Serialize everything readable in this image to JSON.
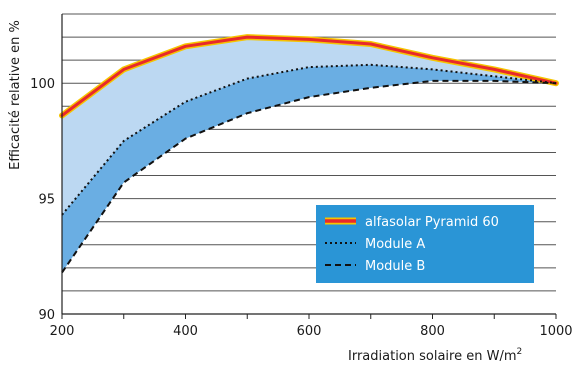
{
  "chart_data": {
    "type": "line",
    "title": "",
    "xlabel": "Irradiation solaire en W/m",
    "xlabel_superscript": "2",
    "ylabel": "Efficacité relative en %",
    "xlim": [
      200,
      1000
    ],
    "ylim": [
      90,
      103
    ],
    "x_ticks": [
      200,
      300,
      400,
      500,
      600,
      700,
      800,
      900,
      1000
    ],
    "x_tick_labels": [
      "200",
      "400",
      "600",
      "800",
      "1000"
    ],
    "x_tick_label_values": [
      200,
      400,
      600,
      800,
      1000
    ],
    "y_grid": [
      91,
      92,
      93,
      94,
      95,
      96,
      97,
      98,
      99,
      100,
      101,
      102,
      103
    ],
    "y_tick_labels": [
      "90",
      "95",
      "100"
    ],
    "y_tick_label_values": [
      90,
      95,
      100
    ],
    "grid": "horizontal",
    "legend_position": "bottom-right",
    "x": [
      200,
      300,
      400,
      500,
      600,
      700,
      800,
      900,
      1000
    ],
    "series": [
      {
        "name": "alfasolar Pyramid 60",
        "values": [
          98.6,
          100.6,
          101.6,
          102.0,
          101.9,
          101.7,
          101.1,
          100.6,
          100.0
        ],
        "style": "solid-thick",
        "color": "#e8292b",
        "outline_color": "#f5c400"
      },
      {
        "name": "Module A",
        "values": [
          94.3,
          97.5,
          99.2,
          100.2,
          100.7,
          100.8,
          100.6,
          100.3,
          100.0
        ],
        "style": "dotted",
        "color": "#111111"
      },
      {
        "name": "Module B",
        "values": [
          91.8,
          95.7,
          97.6,
          98.7,
          99.4,
          99.8,
          100.1,
          100.1,
          100.0
        ],
        "style": "dashed",
        "color": "#111111"
      }
    ],
    "fill_colors": {
      "upper_band": "#bcd8f2",
      "lower_band": "#6aaee3"
    },
    "legend_background": "#2a95d6"
  }
}
